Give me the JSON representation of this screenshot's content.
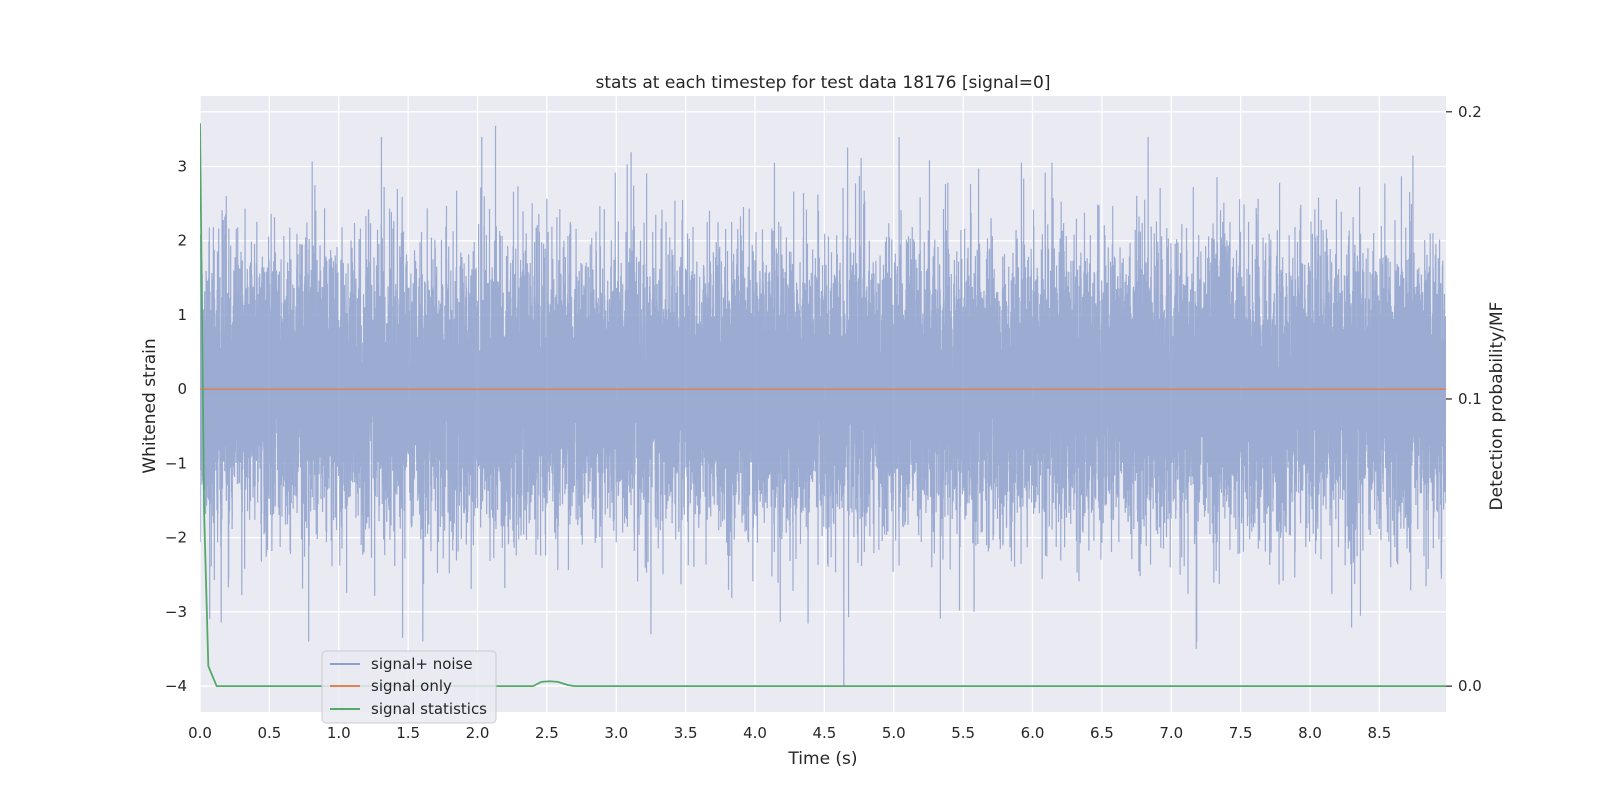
{
  "chart_data": {
    "type": "line",
    "title": "stats at each timestep for test data 18176 [signal=0]",
    "xlabel": "Time (s)",
    "ylabel": "Whitened strain",
    "ylabel_right": "Detection probability/MF",
    "xlim": [
      0,
      8.98
    ],
    "ylim": [
      -4.35,
      3.95
    ],
    "ylim_right": [
      -0.009,
      0.2055
    ],
    "xticks": [
      0.0,
      0.5,
      1.0,
      1.5,
      2.0,
      2.5,
      3.0,
      3.5,
      4.0,
      4.5,
      5.0,
      5.5,
      6.0,
      6.5,
      7.0,
      7.5,
      8.0,
      8.5
    ],
    "xtick_labels": [
      "0.0",
      "0.5",
      "1.0",
      "1.5",
      "2.0",
      "2.5",
      "3.0",
      "3.5",
      "4.0",
      "4.5",
      "5.0",
      "5.5",
      "6.0",
      "6.5",
      "7.0",
      "7.5",
      "8.0",
      "8.5"
    ],
    "yticks": [
      -4,
      -3,
      -2,
      -1,
      0,
      1,
      2,
      3
    ],
    "ytick_labels": [
      "−4",
      "−3",
      "−2",
      "−1",
      "0",
      "1",
      "2",
      "3"
    ],
    "yticks_right": [
      0.0,
      0.1,
      0.2
    ],
    "ytick_labels_right": [
      "0.0",
      "0.1",
      "0.2"
    ],
    "grid": true,
    "legend_position": "lower-left",
    "series": [
      {
        "name": "signal+ noise",
        "axis": "left",
        "color": "#8da0cb",
        "kind": "noise",
        "sample_rate_hz": 2048,
        "duration_s": 8.98,
        "std": 0.92,
        "notable_peaks": [
          [
            2.13,
            3.55
          ],
          [
            4.64,
            -4.0
          ],
          [
            1.46,
            -3.35
          ],
          [
            7.18,
            -3.5
          ],
          [
            3.25,
            -3.3
          ],
          [
            5.92,
            3.05
          ],
          [
            6.14,
            3.05
          ],
          [
            0.07,
            -3.1
          ],
          [
            4.14,
            3.05
          ]
        ]
      },
      {
        "name": "signal only",
        "axis": "left",
        "color": "#dd8452",
        "kind": "constant",
        "x": [
          0.0,
          8.98
        ],
        "y": [
          0.0,
          0.0
        ]
      },
      {
        "name": "signal statistics",
        "axis": "right",
        "color": "#55a868",
        "kind": "line",
        "x": [
          0.0,
          0.03,
          0.06,
          0.12,
          0.5,
          1.0,
          1.5,
          2.0,
          2.4,
          2.46,
          2.52,
          2.58,
          2.65,
          2.7,
          3.0,
          4.0,
          5.0,
          6.0,
          7.0,
          8.0,
          8.98
        ],
        "y": [
          0.196,
          0.06,
          0.007,
          0.0,
          0.0,
          0.0,
          0.0,
          0.0,
          0.0,
          0.0015,
          0.0017,
          0.0015,
          0.0004,
          0.0,
          0.0,
          0.0,
          0.0,
          0.0,
          0.0,
          0.0,
          0.0
        ]
      }
    ]
  }
}
